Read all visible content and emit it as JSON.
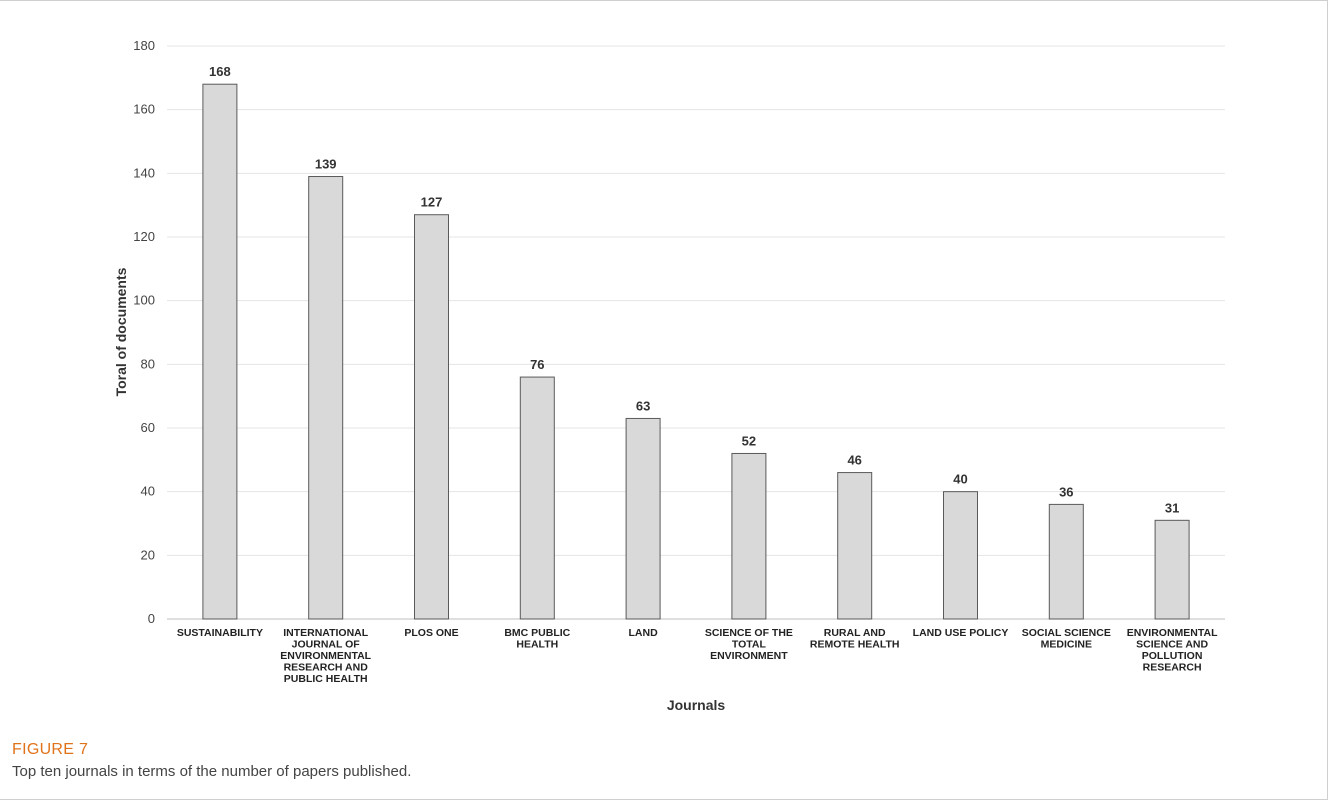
{
  "figure": {
    "label": "FIGURE 7",
    "caption": "Top ten journals in terms of the number of papers published."
  },
  "chart_data": {
    "type": "bar",
    "categories": [
      [
        "SUSTAINABILITY"
      ],
      [
        "INTERNATIONAL",
        "JOURNAL OF",
        "ENVIRONMENTAL",
        "RESEARCH AND",
        "PUBLIC HEALTH"
      ],
      [
        "PLOS ONE"
      ],
      [
        "BMC PUBLIC",
        "HEALTH"
      ],
      [
        "LAND"
      ],
      [
        "SCIENCE OF THE",
        "TOTAL",
        "ENVIRONMENT"
      ],
      [
        "RURAL AND",
        "REMOTE HEALTH"
      ],
      [
        "LAND USE POLICY"
      ],
      [
        "SOCIAL SCIENCE",
        "MEDICINE"
      ],
      [
        "ENVIRONMENTAL",
        "SCIENCE AND",
        "POLLUTION",
        "RESEARCH"
      ]
    ],
    "values": [
      168,
      139,
      127,
      76,
      63,
      52,
      46,
      40,
      36,
      31
    ],
    "xlabel": "Journals",
    "ylabel": "Toral of documents",
    "ylim": [
      0,
      180
    ],
    "yticks": [
      0,
      20,
      40,
      60,
      80,
      100,
      120,
      140,
      160,
      180
    ],
    "grid": true,
    "data_labels": true,
    "bar_color": "#d9d9d9",
    "bar_edge_color": "#5a5a5a"
  }
}
